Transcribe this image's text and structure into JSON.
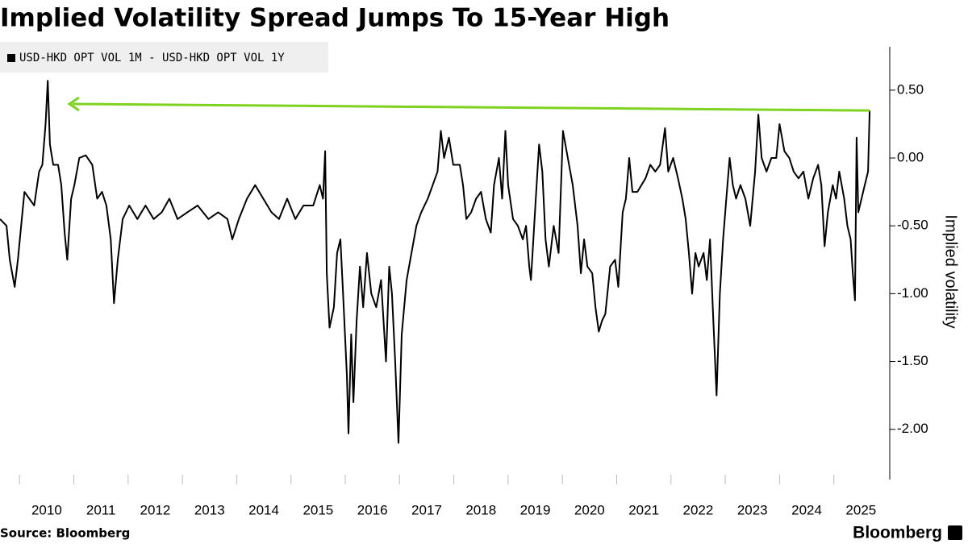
{
  "chart_data": {
    "type": "line",
    "title": "Implied Volatility Spread Jumps To 15-Year High",
    "ylabel": "Implied volatility",
    "source": "Source: Bloomberg",
    "brand": "Bloomberg",
    "xlim": [
      2009.64,
      2026.03
    ],
    "xticks": [
      2010,
      2011,
      2012,
      2013,
      2014,
      2015,
      2016,
      2017,
      2018,
      2019,
      2020,
      2021,
      2022,
      2023,
      2024,
      2025
    ],
    "ylim": [
      -2.37,
      0.82
    ],
    "yticks": [
      {
        "value": 0.5,
        "label": "0.50"
      },
      {
        "value": 0,
        "label": "0.00"
      },
      {
        "value": -0.5,
        "label": "-0.50"
      },
      {
        "value": -1,
        "label": "-1.00"
      },
      {
        "value": -1.5,
        "label": "-1.50"
      },
      {
        "value": -2,
        "label": "-2.00"
      }
    ],
    "x": [
      2009.64,
      2009.76,
      2009.82,
      2009.91,
      2009.97,
      2010.03,
      2010.09,
      2010.18,
      2010.27,
      2010.36,
      2010.42,
      2010.48,
      2010.52,
      2010.56,
      2010.62,
      2010.71,
      2010.77,
      2010.83,
      2010.88,
      2010.95,
      2011.01,
      2011.1,
      2011.22,
      2011.34,
      2011.43,
      2011.52,
      2011.6,
      2011.68,
      2011.74,
      2011.81,
      2011.9,
      2012.02,
      2012.17,
      2012.32,
      2012.47,
      2012.62,
      2012.76,
      2012.91,
      2013.09,
      2013.28,
      2013.48,
      2013.66,
      2013.83,
      2013.92,
      2014.04,
      2014.19,
      2014.34,
      2014.49,
      2014.64,
      2014.78,
      2014.93,
      2015.08,
      2015.23,
      2015.41,
      2015.53,
      2015.59,
      2015.63,
      2015.66,
      2015.71,
      2015.79,
      2015.85,
      2015.91,
      2015.96,
      2016.03,
      2016.06,
      2016.11,
      2016.15,
      2016.21,
      2016.27,
      2016.33,
      2016.4,
      2016.48,
      2016.57,
      2016.66,
      2016.75,
      2016.81,
      2016.86,
      2016.92,
      2016.98,
      2017.04,
      2017.13,
      2017.22,
      2017.31,
      2017.4,
      2017.52,
      2017.61,
      2017.7,
      2017.76,
      2017.82,
      2017.91,
      2017.99,
      2018.11,
      2018.17,
      2018.23,
      2018.32,
      2018.41,
      2018.5,
      2018.59,
      2018.68,
      2018.74,
      2018.83,
      2018.89,
      2018.95,
      2019.0,
      2019.09,
      2019.18,
      2019.27,
      2019.33,
      2019.39,
      2019.42,
      2019.51,
      2019.57,
      2019.63,
      2019.69,
      2019.75,
      2019.84,
      2019.93,
      2020.01,
      2020.1,
      2020.19,
      2020.28,
      2020.34,
      2020.4,
      2020.46,
      2020.55,
      2020.61,
      2020.67,
      2020.73,
      2020.79,
      2020.88,
      2020.97,
      2021.03,
      2021.11,
      2021.17,
      2021.23,
      2021.29,
      2021.38,
      2021.53,
      2021.62,
      2021.71,
      2021.8,
      2021.89,
      2021.95,
      2022.04,
      2022.13,
      2022.21,
      2022.27,
      2022.33,
      2022.39,
      2022.45,
      2022.51,
      2022.6,
      2022.66,
      2022.72,
      2022.78,
      2022.84,
      2022.9,
      2022.96,
      2023.02,
      2023.08,
      2023.14,
      2023.2,
      2023.28,
      2023.37,
      2023.46,
      2023.55,
      2023.61,
      2023.67,
      2023.76,
      2023.85,
      2023.94,
      2024.0,
      2024.09,
      2024.18,
      2024.26,
      2024.35,
      2024.44,
      2024.53,
      2024.62,
      2024.71,
      2024.77,
      2024.83,
      2024.89,
      2024.98,
      2025.04,
      2025.1,
      2025.19,
      2025.25,
      2025.31,
      2025.35,
      2025.39,
      2025.42,
      2025.45,
      2025.51,
      2025.57,
      2025.63,
      2025.66
    ],
    "series": [
      {
        "name": "USD-HKD OPT VOL 1M - USD-HKD OPT VOL 1Y",
        "color": "#000000",
        "values": [
          -0.45,
          -0.5,
          -0.75,
          -0.95,
          -0.75,
          -0.5,
          -0.25,
          -0.3,
          -0.35,
          -0.1,
          -0.05,
          0.25,
          0.57,
          0.1,
          -0.05,
          -0.05,
          -0.2,
          -0.55,
          -0.75,
          -0.3,
          -0.2,
          0.0,
          0.02,
          -0.05,
          -0.3,
          -0.25,
          -0.35,
          -0.6,
          -1.07,
          -0.75,
          -0.45,
          -0.35,
          -0.45,
          -0.35,
          -0.45,
          -0.4,
          -0.3,
          -0.45,
          -0.4,
          -0.35,
          -0.45,
          -0.4,
          -0.45,
          -0.6,
          -0.45,
          -0.3,
          -0.2,
          -0.3,
          -0.4,
          -0.45,
          -0.3,
          -0.45,
          -0.35,
          -0.35,
          -0.2,
          -0.3,
          0.05,
          -0.85,
          -1.25,
          -1.1,
          -0.7,
          -0.6,
          -1.0,
          -1.6,
          -2.03,
          -1.3,
          -1.8,
          -1.2,
          -0.8,
          -1.1,
          -0.7,
          -1.0,
          -1.1,
          -0.9,
          -1.5,
          -0.8,
          -1.0,
          -1.5,
          -2.1,
          -1.3,
          -0.9,
          -0.7,
          -0.5,
          -0.4,
          -0.3,
          -0.2,
          -0.1,
          0.2,
          0.0,
          0.15,
          -0.05,
          -0.05,
          -0.2,
          -0.45,
          -0.4,
          -0.3,
          -0.25,
          -0.45,
          -0.55,
          -0.2,
          0.0,
          -0.3,
          0.2,
          -0.2,
          -0.45,
          -0.5,
          -0.6,
          -0.5,
          -0.8,
          -0.9,
          -0.3,
          0.1,
          -0.1,
          -0.6,
          -0.8,
          -0.5,
          -0.7,
          0.2,
          0.0,
          -0.2,
          -0.5,
          -0.85,
          -0.6,
          -0.8,
          -0.85,
          -1.1,
          -1.28,
          -1.2,
          -1.15,
          -0.8,
          -0.75,
          -0.95,
          -0.4,
          -0.3,
          0.0,
          -0.25,
          -0.25,
          -0.15,
          -0.05,
          -0.1,
          -0.05,
          0.22,
          -0.1,
          0.0,
          -0.15,
          -0.3,
          -0.45,
          -0.7,
          -1.0,
          -0.7,
          -0.8,
          -0.7,
          -0.9,
          -0.6,
          -1.2,
          -1.75,
          -1.0,
          -0.6,
          -0.3,
          0.0,
          -0.2,
          -0.3,
          -0.2,
          -0.3,
          -0.5,
          -0.1,
          0.32,
          0.0,
          -0.1,
          0.0,
          0.0,
          0.25,
          0.05,
          0.0,
          -0.1,
          -0.15,
          -0.1,
          -0.3,
          -0.15,
          -0.05,
          -0.2,
          -0.65,
          -0.4,
          -0.2,
          -0.3,
          -0.1,
          -0.3,
          -0.5,
          -0.6,
          -0.85,
          -1.05,
          0.15,
          -0.4,
          -0.3,
          -0.2,
          -0.1,
          0.35
        ]
      }
    ]
  }
}
